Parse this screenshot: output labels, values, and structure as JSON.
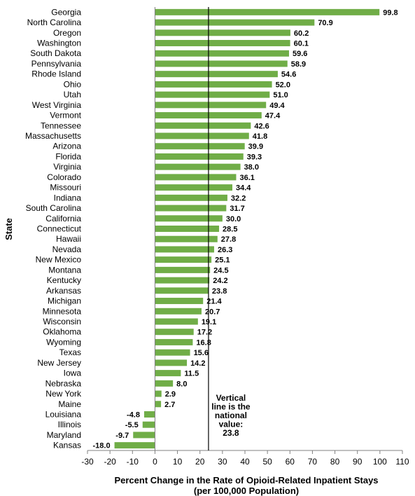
{
  "chart_data": {
    "type": "bar",
    "orientation": "horizontal",
    "categories": [
      "Georgia",
      "North Carolina",
      "Oregon",
      "Washington",
      "South Dakota",
      "Pennsylvania",
      "Rhode Island",
      "Ohio",
      "Utah",
      "West Virginia",
      "Vermont",
      "Tennessee",
      "Massachusetts",
      "Arizona",
      "Florida",
      "Virginia",
      "Colorado",
      "Missouri",
      "Indiana",
      "South Carolina",
      "California",
      "Connecticut",
      "Hawaii",
      "Nevada",
      "New Mexico",
      "Montana",
      "Kentucky",
      "Arkansas",
      "Michigan",
      "Minnesota",
      "Wisconsin",
      "Oklahoma",
      "Wyoming",
      "Texas",
      "New Jersey",
      "Iowa",
      "Nebraska",
      "New York",
      "Maine",
      "Louisiana",
      "Illinois",
      "Maryland",
      "Kansas"
    ],
    "values": [
      99.8,
      70.9,
      60.2,
      60.1,
      59.6,
      58.9,
      54.6,
      52.0,
      51.0,
      49.4,
      47.4,
      42.6,
      41.8,
      39.9,
      39.3,
      38.0,
      36.1,
      34.4,
      32.2,
      31.7,
      30.0,
      28.5,
      27.8,
      26.3,
      25.1,
      24.5,
      24.2,
      23.8,
      21.4,
      20.7,
      19.1,
      17.2,
      16.8,
      15.6,
      14.2,
      11.5,
      8.0,
      2.9,
      2.7,
      -4.8,
      -5.5,
      -9.7,
      -18.0
    ],
    "value_labels": [
      "99.8",
      "70.9",
      "60.2",
      "60.1",
      "59.6",
      "58.9",
      "54.6",
      "52.0",
      "51.0",
      "49.4",
      "47.4",
      "42.6",
      "41.8",
      "39.9",
      "39.3",
      "38.0",
      "36.1",
      "34.4",
      "32.2",
      "31.7",
      "30.0",
      "28.5",
      "27.8",
      "26.3",
      "25.1",
      "24.5",
      "24.2",
      "23.8",
      "21.4",
      "20.7",
      "19.1",
      "17.2",
      "16.8",
      "15.6",
      "14.2",
      "11.5",
      "8.0",
      "2.9",
      "2.7",
      "-4.8",
      "-5.5",
      "-9.7",
      "-18.0"
    ],
    "xlabel": [
      "Percent Change in the Rate of Opioid-Related Inpatient Stays",
      "(per 100,000 Population)"
    ],
    "ylabel": "State",
    "xlim": [
      -30,
      110
    ],
    "xticks": [
      -30,
      -20,
      -10,
      0,
      10,
      20,
      30,
      40,
      50,
      60,
      70,
      80,
      90,
      100,
      110
    ],
    "xtick_labels": [
      "-30",
      "-20",
      "-10",
      "0",
      "10",
      "20",
      "30",
      "40",
      "50",
      "60",
      "70",
      "80",
      "90",
      "100",
      "110"
    ],
    "reference_line": {
      "value": 23.8,
      "label": [
        "Vertical",
        "line is the",
        "national",
        "value:",
        "23.8"
      ]
    },
    "grid": false,
    "legend": "none",
    "bar_color": "#70ad47"
  }
}
